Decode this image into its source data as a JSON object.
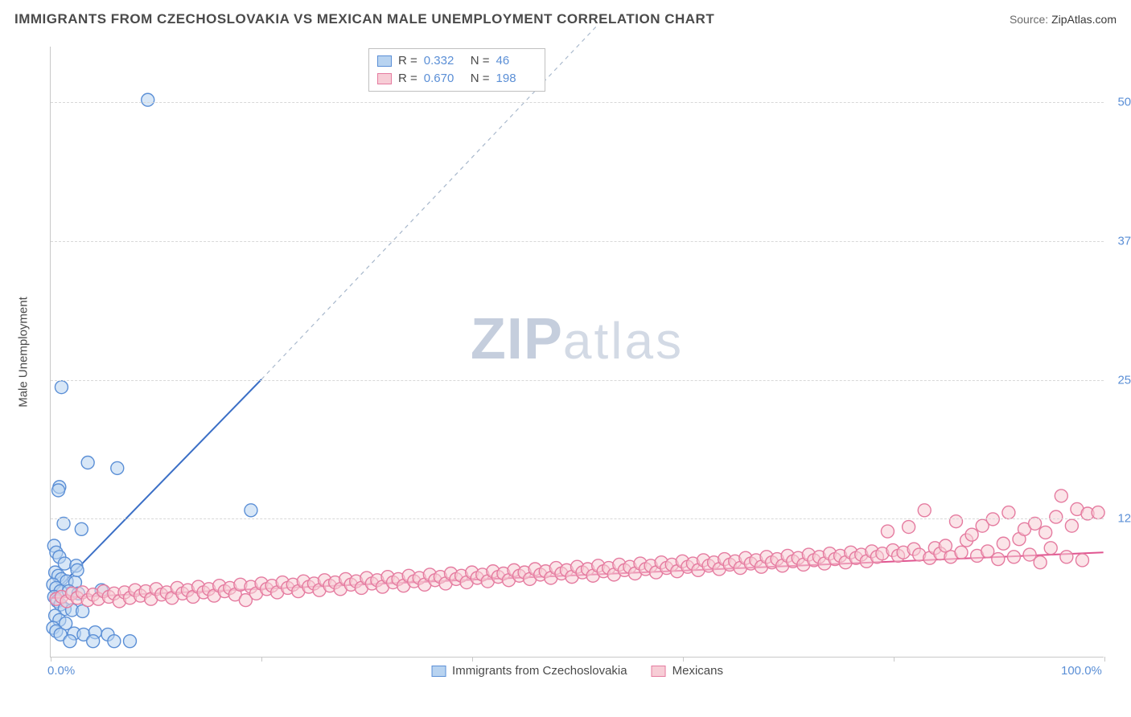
{
  "header": {
    "title": "IMMIGRANTS FROM CZECHOSLOVAKIA VS MEXICAN MALE UNEMPLOYMENT CORRELATION CHART",
    "source_label": "Source:",
    "source_value": "ZipAtlas.com"
  },
  "watermark": {
    "zip": "ZIP",
    "atlas": "atlas"
  },
  "chart": {
    "type": "scatter",
    "ylabel": "Male Unemployment",
    "xlim": [
      0,
      100
    ],
    "ylim": [
      0,
      55
    ],
    "xtick_positions": [
      0,
      20,
      40,
      60,
      80,
      100
    ],
    "xtick_labels": {
      "0": "0.0%",
      "100": "100.0%"
    },
    "ygrid": [
      {
        "v": 12.5,
        "label": "12.5%"
      },
      {
        "v": 25.0,
        "label": "25.0%"
      },
      {
        "v": 37.5,
        "label": "37.5%"
      },
      {
        "v": 50.0,
        "label": "50.0%"
      }
    ],
    "background_color": "#ffffff",
    "grid_color": "#d8d8d8",
    "axis_color": "#c8c8c8",
    "tick_label_color": "#5b8fd6",
    "marker_radius": 8,
    "marker_stroke_width": 1.4,
    "series": [
      {
        "id": "czech",
        "label": "Immigrants from Czechoslovakia",
        "R": "0.332",
        "N": "46",
        "fill": "#b8d3f0",
        "stroke": "#5b8fd6",
        "fill_opacity": 0.55,
        "trend": {
          "x1": 0,
          "y1": 5.5,
          "x2": 20,
          "y2": 25,
          "extend_x2": 52,
          "extend_y2": 57,
          "color": "#3b6fc6",
          "width": 2
        },
        "points": [
          [
            9.2,
            50.2
          ],
          [
            1.0,
            24.3
          ],
          [
            3.5,
            17.5
          ],
          [
            6.3,
            17.0
          ],
          [
            0.8,
            15.3
          ],
          [
            0.7,
            15.0
          ],
          [
            1.2,
            12.0
          ],
          [
            2.9,
            11.5
          ],
          [
            19.0,
            13.2
          ],
          [
            0.3,
            10.0
          ],
          [
            0.5,
            9.4
          ],
          [
            0.8,
            9.0
          ],
          [
            1.3,
            8.4
          ],
          [
            2.4,
            8.2
          ],
          [
            0.4,
            7.6
          ],
          [
            0.7,
            7.3
          ],
          [
            1.0,
            7.0
          ],
          [
            1.5,
            6.8
          ],
          [
            2.3,
            6.7
          ],
          [
            0.2,
            6.5
          ],
          [
            0.5,
            6.2
          ],
          [
            0.9,
            5.9
          ],
          [
            1.7,
            5.9
          ],
          [
            2.6,
            5.7
          ],
          [
            0.3,
            5.4
          ],
          [
            0.6,
            5.0
          ],
          [
            0.9,
            4.7
          ],
          [
            1.3,
            4.3
          ],
          [
            2.0,
            4.2
          ],
          [
            3.0,
            4.1
          ],
          [
            0.4,
            3.7
          ],
          [
            0.8,
            3.3
          ],
          [
            1.4,
            3.0
          ],
          [
            0.2,
            2.6
          ],
          [
            0.5,
            2.3
          ],
          [
            0.9,
            2.0
          ],
          [
            2.2,
            2.1
          ],
          [
            3.1,
            2.0
          ],
          [
            4.2,
            2.2
          ],
          [
            5.4,
            2.0
          ],
          [
            1.8,
            1.4
          ],
          [
            4.0,
            1.4
          ],
          [
            6.0,
            1.4
          ],
          [
            7.5,
            1.4
          ],
          [
            2.5,
            7.8
          ],
          [
            4.8,
            6.0
          ]
        ]
      },
      {
        "id": "mexican",
        "label": "Mexicans",
        "R": "0.670",
        "N": "198",
        "fill": "#f7cdd6",
        "stroke": "#e57ba0",
        "fill_opacity": 0.55,
        "trend": {
          "x1": 0,
          "y1": 5.3,
          "x2": 100,
          "y2": 9.4,
          "color": "#e05590",
          "width": 2
        },
        "points": [
          [
            0.5,
            5.2
          ],
          [
            1.0,
            5.4
          ],
          [
            1.5,
            5.0
          ],
          [
            2.0,
            5.7
          ],
          [
            2.5,
            5.3
          ],
          [
            3.0,
            5.8
          ],
          [
            3.5,
            5.1
          ],
          [
            4.0,
            5.6
          ],
          [
            4.5,
            5.2
          ],
          [
            5.0,
            5.9
          ],
          [
            5.5,
            5.4
          ],
          [
            6.0,
            5.7
          ],
          [
            6.5,
            5.0
          ],
          [
            7.0,
            5.8
          ],
          [
            7.5,
            5.3
          ],
          [
            8.0,
            6.0
          ],
          [
            8.5,
            5.5
          ],
          [
            9.0,
            5.9
          ],
          [
            9.5,
            5.2
          ],
          [
            10.0,
            6.1
          ],
          [
            10.5,
            5.6
          ],
          [
            11.0,
            5.8
          ],
          [
            11.5,
            5.3
          ],
          [
            12.0,
            6.2
          ],
          [
            12.5,
            5.7
          ],
          [
            13.0,
            6.0
          ],
          [
            13.5,
            5.4
          ],
          [
            14.0,
            6.3
          ],
          [
            14.5,
            5.8
          ],
          [
            15.0,
            6.1
          ],
          [
            15.5,
            5.5
          ],
          [
            16.0,
            6.4
          ],
          [
            16.5,
            5.9
          ],
          [
            17.0,
            6.2
          ],
          [
            17.5,
            5.6
          ],
          [
            18.0,
            6.5
          ],
          [
            18.5,
            5.1
          ],
          [
            19.0,
            6.3
          ],
          [
            19.5,
            5.7
          ],
          [
            20.0,
            6.6
          ],
          [
            20.5,
            6.1
          ],
          [
            21.0,
            6.4
          ],
          [
            21.5,
            5.8
          ],
          [
            22.0,
            6.7
          ],
          [
            22.5,
            6.2
          ],
          [
            23.0,
            6.5
          ],
          [
            23.5,
            5.9
          ],
          [
            24.0,
            6.8
          ],
          [
            24.5,
            6.3
          ],
          [
            25.0,
            6.6
          ],
          [
            25.5,
            6.0
          ],
          [
            26.0,
            6.9
          ],
          [
            26.5,
            6.4
          ],
          [
            27.0,
            6.7
          ],
          [
            27.5,
            6.1
          ],
          [
            28.0,
            7.0
          ],
          [
            28.5,
            6.5
          ],
          [
            29.0,
            6.8
          ],
          [
            29.5,
            6.2
          ],
          [
            30.0,
            7.1
          ],
          [
            30.5,
            6.6
          ],
          [
            31.0,
            6.9
          ],
          [
            31.5,
            6.3
          ],
          [
            32.0,
            7.2
          ],
          [
            32.5,
            6.7
          ],
          [
            33.0,
            7.0
          ],
          [
            33.5,
            6.4
          ],
          [
            34.0,
            7.3
          ],
          [
            34.5,
            6.8
          ],
          [
            35.0,
            7.1
          ],
          [
            35.5,
            6.5
          ],
          [
            36.0,
            7.4
          ],
          [
            36.5,
            6.9
          ],
          [
            37.0,
            7.2
          ],
          [
            37.5,
            6.6
          ],
          [
            38.0,
            7.5
          ],
          [
            38.5,
            7.0
          ],
          [
            39.0,
            7.3
          ],
          [
            39.5,
            6.7
          ],
          [
            40.0,
            7.6
          ],
          [
            40.5,
            7.1
          ],
          [
            41.0,
            7.4
          ],
          [
            41.5,
            6.8
          ],
          [
            42.0,
            7.7
          ],
          [
            42.5,
            7.2
          ],
          [
            43.0,
            7.5
          ],
          [
            43.5,
            6.9
          ],
          [
            44.0,
            7.8
          ],
          [
            44.5,
            7.3
          ],
          [
            45.0,
            7.6
          ],
          [
            45.5,
            7.0
          ],
          [
            46.0,
            7.9
          ],
          [
            46.5,
            7.4
          ],
          [
            47.0,
            7.7
          ],
          [
            47.5,
            7.1
          ],
          [
            48.0,
            8.0
          ],
          [
            48.5,
            7.5
          ],
          [
            49.0,
            7.8
          ],
          [
            49.5,
            7.2
          ],
          [
            50.0,
            8.1
          ],
          [
            50.5,
            7.6
          ],
          [
            51.0,
            7.9
          ],
          [
            51.5,
            7.3
          ],
          [
            52.0,
            8.2
          ],
          [
            52.5,
            7.7
          ],
          [
            53.0,
            8.0
          ],
          [
            53.5,
            7.4
          ],
          [
            54.0,
            8.3
          ],
          [
            54.5,
            7.8
          ],
          [
            55.0,
            8.1
          ],
          [
            55.5,
            7.5
          ],
          [
            56.0,
            8.4
          ],
          [
            56.5,
            7.9
          ],
          [
            57.0,
            8.2
          ],
          [
            57.5,
            7.6
          ],
          [
            58.0,
            8.5
          ],
          [
            58.5,
            8.0
          ],
          [
            59.0,
            8.3
          ],
          [
            59.5,
            7.7
          ],
          [
            60.0,
            8.6
          ],
          [
            60.5,
            8.1
          ],
          [
            61.0,
            8.4
          ],
          [
            61.5,
            7.8
          ],
          [
            62.0,
            8.7
          ],
          [
            62.5,
            8.2
          ],
          [
            63.0,
            8.5
          ],
          [
            63.5,
            7.9
          ],
          [
            64.0,
            8.8
          ],
          [
            64.5,
            8.3
          ],
          [
            65.0,
            8.6
          ],
          [
            65.5,
            8.0
          ],
          [
            66.0,
            8.9
          ],
          [
            66.5,
            8.4
          ],
          [
            67.0,
            8.7
          ],
          [
            67.5,
            8.1
          ],
          [
            68.0,
            9.0
          ],
          [
            68.5,
            8.5
          ],
          [
            69.0,
            8.8
          ],
          [
            69.5,
            8.2
          ],
          [
            70.0,
            9.1
          ],
          [
            70.5,
            8.6
          ],
          [
            71.0,
            8.9
          ],
          [
            71.5,
            8.3
          ],
          [
            72.0,
            9.2
          ],
          [
            72.5,
            8.7
          ],
          [
            73.0,
            9.0
          ],
          [
            73.5,
            8.4
          ],
          [
            74.0,
            9.3
          ],
          [
            74.5,
            8.8
          ],
          [
            75.0,
            9.1
          ],
          [
            75.5,
            8.5
          ],
          [
            76.0,
            9.4
          ],
          [
            76.5,
            8.9
          ],
          [
            77.0,
            9.2
          ],
          [
            77.5,
            8.6
          ],
          [
            78.0,
            9.5
          ],
          [
            78.5,
            9.0
          ],
          [
            79.0,
            9.3
          ],
          [
            79.5,
            11.3
          ],
          [
            80.0,
            9.6
          ],
          [
            80.5,
            9.1
          ],
          [
            81.0,
            9.4
          ],
          [
            81.5,
            11.7
          ],
          [
            82.0,
            9.7
          ],
          [
            82.5,
            9.2
          ],
          [
            83.0,
            13.2
          ],
          [
            83.5,
            8.9
          ],
          [
            84.0,
            9.8
          ],
          [
            84.5,
            9.3
          ],
          [
            85.0,
            10.0
          ],
          [
            85.5,
            9.0
          ],
          [
            86.0,
            12.2
          ],
          [
            86.5,
            9.4
          ],
          [
            87.0,
            10.5
          ],
          [
            87.5,
            11.0
          ],
          [
            88.0,
            9.1
          ],
          [
            88.5,
            11.8
          ],
          [
            89.0,
            9.5
          ],
          [
            89.5,
            12.4
          ],
          [
            90.0,
            8.8
          ],
          [
            90.5,
            10.2
          ],
          [
            91.0,
            13.0
          ],
          [
            91.5,
            9.0
          ],
          [
            92.0,
            10.6
          ],
          [
            92.5,
            11.5
          ],
          [
            93.0,
            9.2
          ],
          [
            93.5,
            12.0
          ],
          [
            94.0,
            8.5
          ],
          [
            94.5,
            11.2
          ],
          [
            95.0,
            9.8
          ],
          [
            95.5,
            12.6
          ],
          [
            96.0,
            14.5
          ],
          [
            96.5,
            9.0
          ],
          [
            97.0,
            11.8
          ],
          [
            97.5,
            13.3
          ],
          [
            98.0,
            8.7
          ],
          [
            98.5,
            12.9
          ],
          [
            99.5,
            13.0
          ]
        ]
      }
    ],
    "legend_bottom": [
      {
        "label": "Immigrants from Czechoslovakia",
        "fill": "#b8d3f0",
        "stroke": "#5b8fd6"
      },
      {
        "label": "Mexicans",
        "fill": "#f7cdd6",
        "stroke": "#e57ba0"
      }
    ]
  }
}
